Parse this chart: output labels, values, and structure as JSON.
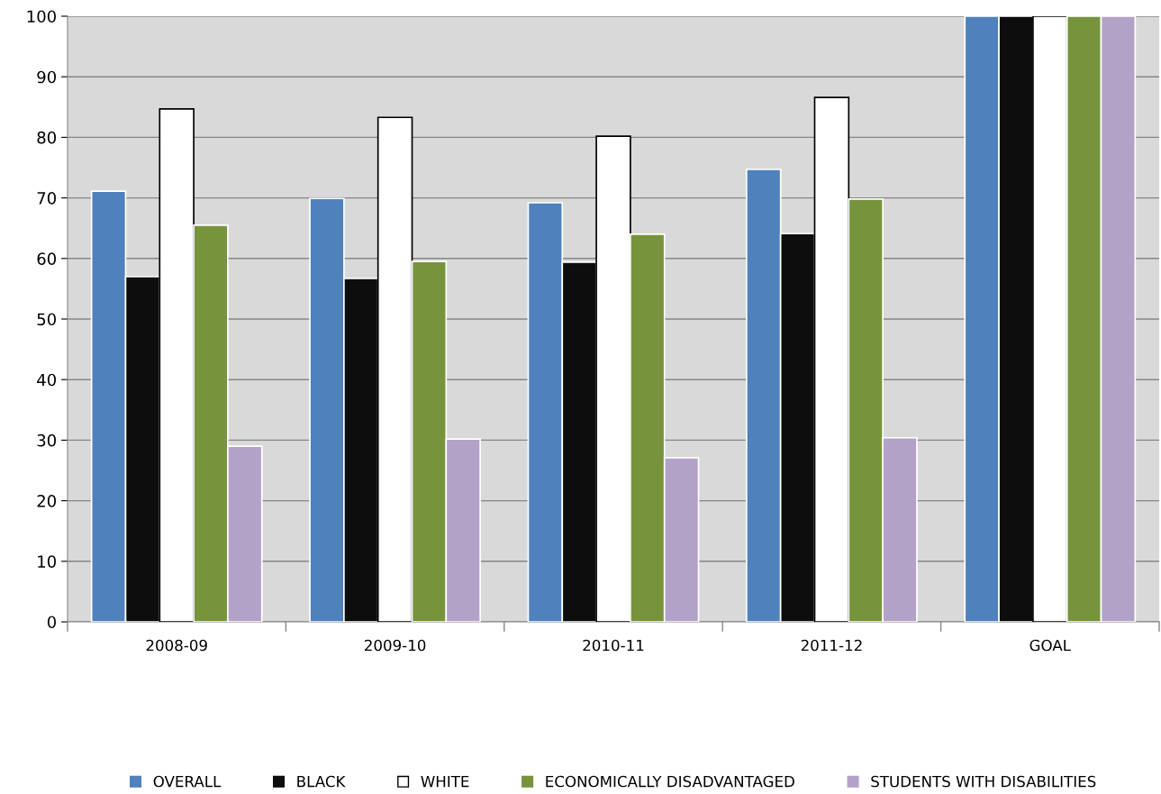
{
  "chart_data": {
    "type": "bar",
    "categories": [
      "2008-09",
      "2009-10",
      "2010-11",
      "2011-12",
      "GOAL"
    ],
    "series": [
      {
        "name": "OVERALL",
        "color": "#4f81bd",
        "values": [
          71.1,
          69.9,
          69.2,
          74.7,
          100
        ]
      },
      {
        "name": "BLACK",
        "color": "#0d0d0d",
        "values": [
          57.0,
          56.7,
          59.4,
          64.1,
          100
        ]
      },
      {
        "name": "WHITE",
        "color": "#ffffff",
        "values": [
          84.7,
          83.3,
          80.2,
          86.6,
          100
        ]
      },
      {
        "name": "ECONOMICALLY DISADVANTAGED",
        "color": "#77933c",
        "values": [
          65.5,
          59.5,
          64.0,
          69.8,
          100
        ]
      },
      {
        "name": "STUDENTS WITH DISABILITIES",
        "color": "#b3a2c7",
        "values": [
          29.0,
          30.2,
          27.1,
          30.4,
          100
        ]
      }
    ],
    "ylim": [
      0,
      100
    ],
    "yticks": [
      0,
      10,
      20,
      30,
      40,
      50,
      60,
      70,
      80,
      90,
      100
    ],
    "grid": "y",
    "legend": "bottom"
  }
}
